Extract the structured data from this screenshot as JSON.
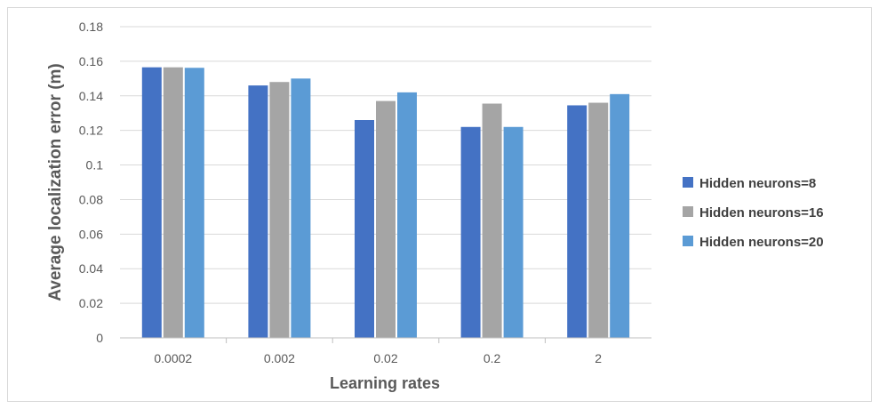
{
  "chart_data": {
    "type": "bar",
    "categories": [
      "0.0002",
      "0.002",
      "0.02",
      "0.2",
      "2"
    ],
    "series": [
      {
        "name": "Hidden neurons=8",
        "color": "#4472c4",
        "values": [
          0.1565,
          0.146,
          0.126,
          0.122,
          0.1345
        ]
      },
      {
        "name": "Hidden neurons=16",
        "color": "#a5a5a5",
        "values": [
          0.1565,
          0.148,
          0.137,
          0.1355,
          0.136
        ]
      },
      {
        "name": "Hidden neurons=20",
        "color": "#5b9bd5",
        "values": [
          0.1562,
          0.15,
          0.142,
          0.122,
          0.141
        ]
      }
    ],
    "title": "",
    "xlabel": "Learning rates",
    "ylabel": "Average localization error (m)",
    "ylim": [
      0,
      0.18
    ],
    "yticks": [
      "0",
      "0.02",
      "0.04",
      "0.06",
      "0.08",
      "0.1",
      "0.12",
      "0.14",
      "0.16",
      "0.18"
    ],
    "grid": true,
    "legend_position": "right"
  }
}
